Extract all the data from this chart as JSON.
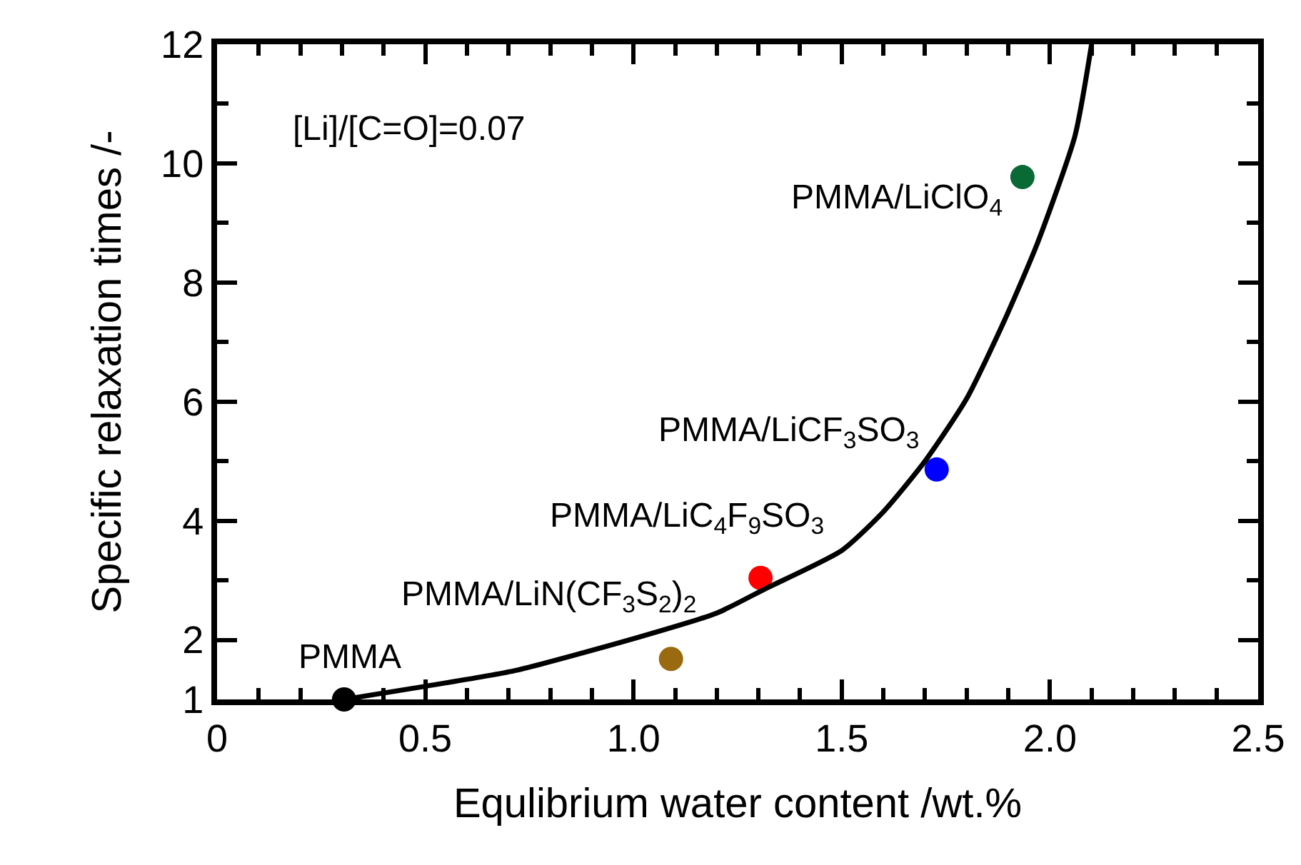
{
  "chart_data": {
    "type": "scatter",
    "xlabel": "Equlibrium water content /wt.%",
    "ylabel": "Specific relaxation times /-",
    "xlim": [
      0,
      2.5
    ],
    "xticks": [
      0,
      0.5,
      {
        "value": 1,
        "label": "1.0"
      },
      1.5,
      {
        "value": 2,
        "label": "2.0"
      },
      2.5
    ],
    "ylim": [
      1,
      12
    ],
    "yticks": [
      1,
      2,
      4,
      6,
      8,
      10,
      12
    ],
    "marker": "circle",
    "series": [
      {
        "x": [
          0.305,
          1.09,
          1.305,
          1.728,
          1.934
        ],
        "values": [
          1,
          1.68,
          3.04,
          4.86,
          9.77
        ],
        "colors": [
          "#000000",
          "#9a6a10",
          "#ff0000",
          "#0000ff",
          "#0a6a35"
        ]
      },
      {
        "type": "line",
        "color": "#000000",
        "marker": "none",
        "line_style": "solid",
        "x": [
          0.305,
          0.5,
          0.713,
          1.0,
          1.2,
          1.317,
          1.5,
          1.6,
          1.7,
          1.8,
          1.89,
          1.97,
          2.06,
          2.1
        ],
        "values": [
          1,
          1.22,
          1.48,
          2.02,
          2.45,
          2.86,
          3.5,
          4.15,
          5.0,
          6.05,
          7.35,
          8.66,
          10.46,
          12
        ]
      }
    ],
    "annotations": [
      {
        "text": "PMMA/LiClO$_{4}$",
        "x": 1.934,
        "y": 9.77
      },
      {
        "text": "PMMA/LiCF$_{3}$SO$_{3}$",
        "x": 1.728,
        "y": 4.86
      },
      {
        "text": "PMMA/LiC$_{4}$F$_{9}$SO$_{3}$",
        "x": 1.305,
        "y": 3.04
      },
      {
        "text": "PMMA/LiN(CF$_{3}$S$_{2}$)$_{2}$",
        "x": 1.09,
        "y": 1.68
      },
      {
        "text": "PMMA",
        "x": 0.305,
        "y": 1
      },
      "[Li]/[C=O]=0.07"
    ]
  }
}
